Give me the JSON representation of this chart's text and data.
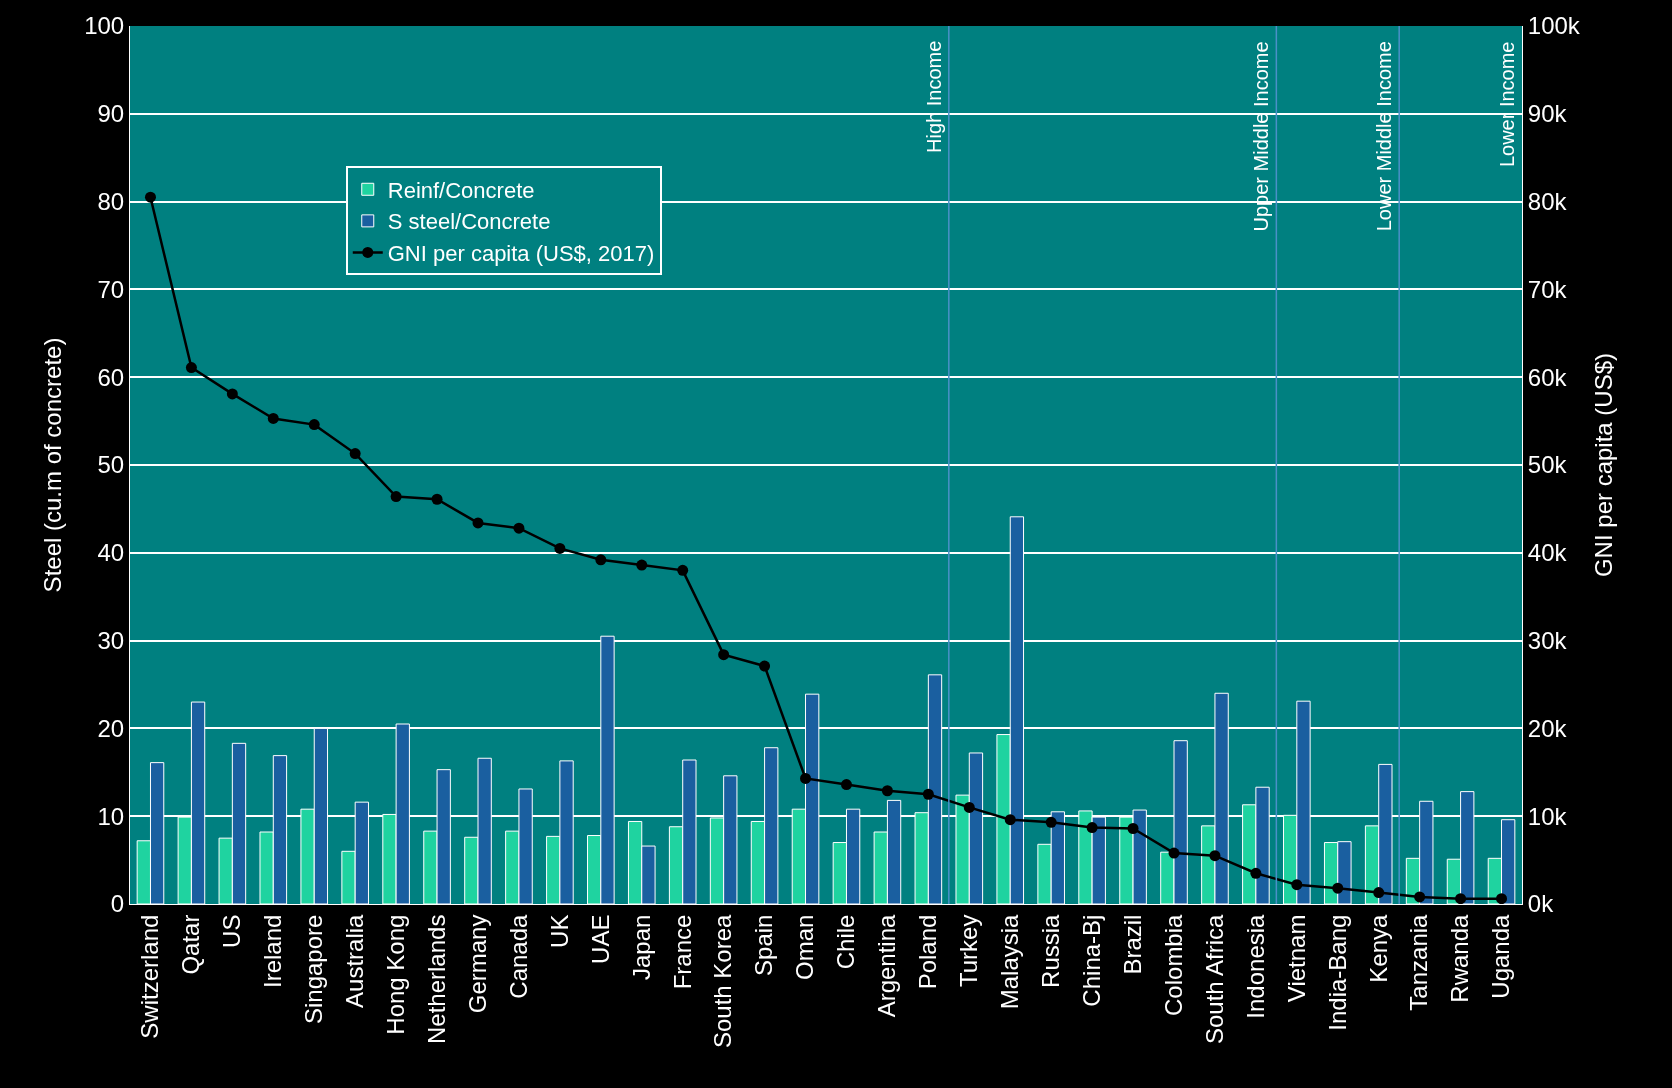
{
  "chart_data": {
    "type": "bar",
    "ylabel": "Steel (cu.m of concrete)",
    "y2label": "GNI per capita (US$)",
    "categories": [
      "Switzerland",
      "Qatar",
      "US",
      "Ireland",
      "Singapore",
      "Australia",
      "Hong Kong",
      "Netherlands",
      "Germany",
      "Canada",
      "UK",
      "UAE",
      "Japan",
      "France",
      "South Korea",
      "Spain",
      "Oman",
      "Chile",
      "Argentina",
      "Poland",
      "Turkey",
      "Malaysia",
      "Russia",
      "China-Bj",
      "Brazil",
      "Colombia",
      "South Africa",
      "Indonesia",
      "Vietnam",
      "India-Bang",
      "Kenya",
      "Tanzania",
      "Rwanda",
      "Uganda"
    ],
    "series": [
      {
        "name": "Reinf/Concrete",
        "color": "#1fd3a0",
        "values": [
          7.2,
          9.9,
          7.5,
          8.2,
          10.8,
          6.0,
          10.2,
          8.3,
          7.6,
          8.3,
          7.7,
          7.8,
          9.4,
          8.8,
          9.8,
          9.4,
          10.8,
          7.0,
          8.2,
          10.4,
          12.4,
          19.3,
          6.8,
          10.6,
          9.9,
          5.9,
          8.9,
          11.3,
          10.1,
          7.0,
          8.9,
          5.2,
          5.1,
          5.2
        ]
      },
      {
        "name": "S steel/Concrete",
        "color": "#1a5fa0",
        "values": [
          16.1,
          23.0,
          18.3,
          16.9,
          20.0,
          11.6,
          20.5,
          15.3,
          16.6,
          13.1,
          16.3,
          30.5,
          6.6,
          16.4,
          14.6,
          17.8,
          23.9,
          10.8,
          11.8,
          26.1,
          17.2,
          44.1,
          10.5,
          9.9,
          10.7,
          18.6,
          24.0,
          13.3,
          23.1,
          7.1,
          15.9,
          11.7,
          12.8,
          9.6
        ]
      },
      {
        "name": "GNI per capita (US$, 2017)",
        "type": "line",
        "axis": "y2",
        "color": "#000000",
        "marker": "circle",
        "values": [
          80500,
          61100,
          58100,
          55300,
          54600,
          51300,
          46400,
          46100,
          43400,
          42800,
          40500,
          39200,
          38600,
          38000,
          28400,
          27100,
          14300,
          13600,
          12900,
          12500,
          11000,
          9600,
          9300,
          8700,
          8600,
          5800,
          5500,
          3500,
          2200,
          1800,
          1300,
          800,
          600,
          600
        ]
      }
    ],
    "ylim": [
      0,
      100
    ],
    "yticks": [
      0,
      10,
      20,
      30,
      40,
      50,
      60,
      70,
      80,
      90,
      100
    ],
    "y2lim": [
      0,
      100000
    ],
    "y2ticks": [
      {
        "value": 0,
        "label": "0k"
      },
      {
        "value": 10000,
        "label": "10k"
      },
      {
        "value": 20000,
        "label": "20k"
      },
      {
        "value": 30000,
        "label": "30k"
      },
      {
        "value": 40000,
        "label": "40k"
      },
      {
        "value": 50000,
        "label": "50k"
      },
      {
        "value": 60000,
        "label": "60k"
      },
      {
        "value": 70000,
        "label": "70k"
      },
      {
        "value": 80000,
        "label": "80k"
      },
      {
        "value": 90000,
        "label": "90k"
      },
      {
        "value": 100000,
        "label": "100k"
      }
    ],
    "annotations": [
      "High Income",
      "Upper Middle Income",
      "Lower Middle Income",
      "Lower Income"
    ],
    "grid": "y",
    "legend": "top left"
  }
}
